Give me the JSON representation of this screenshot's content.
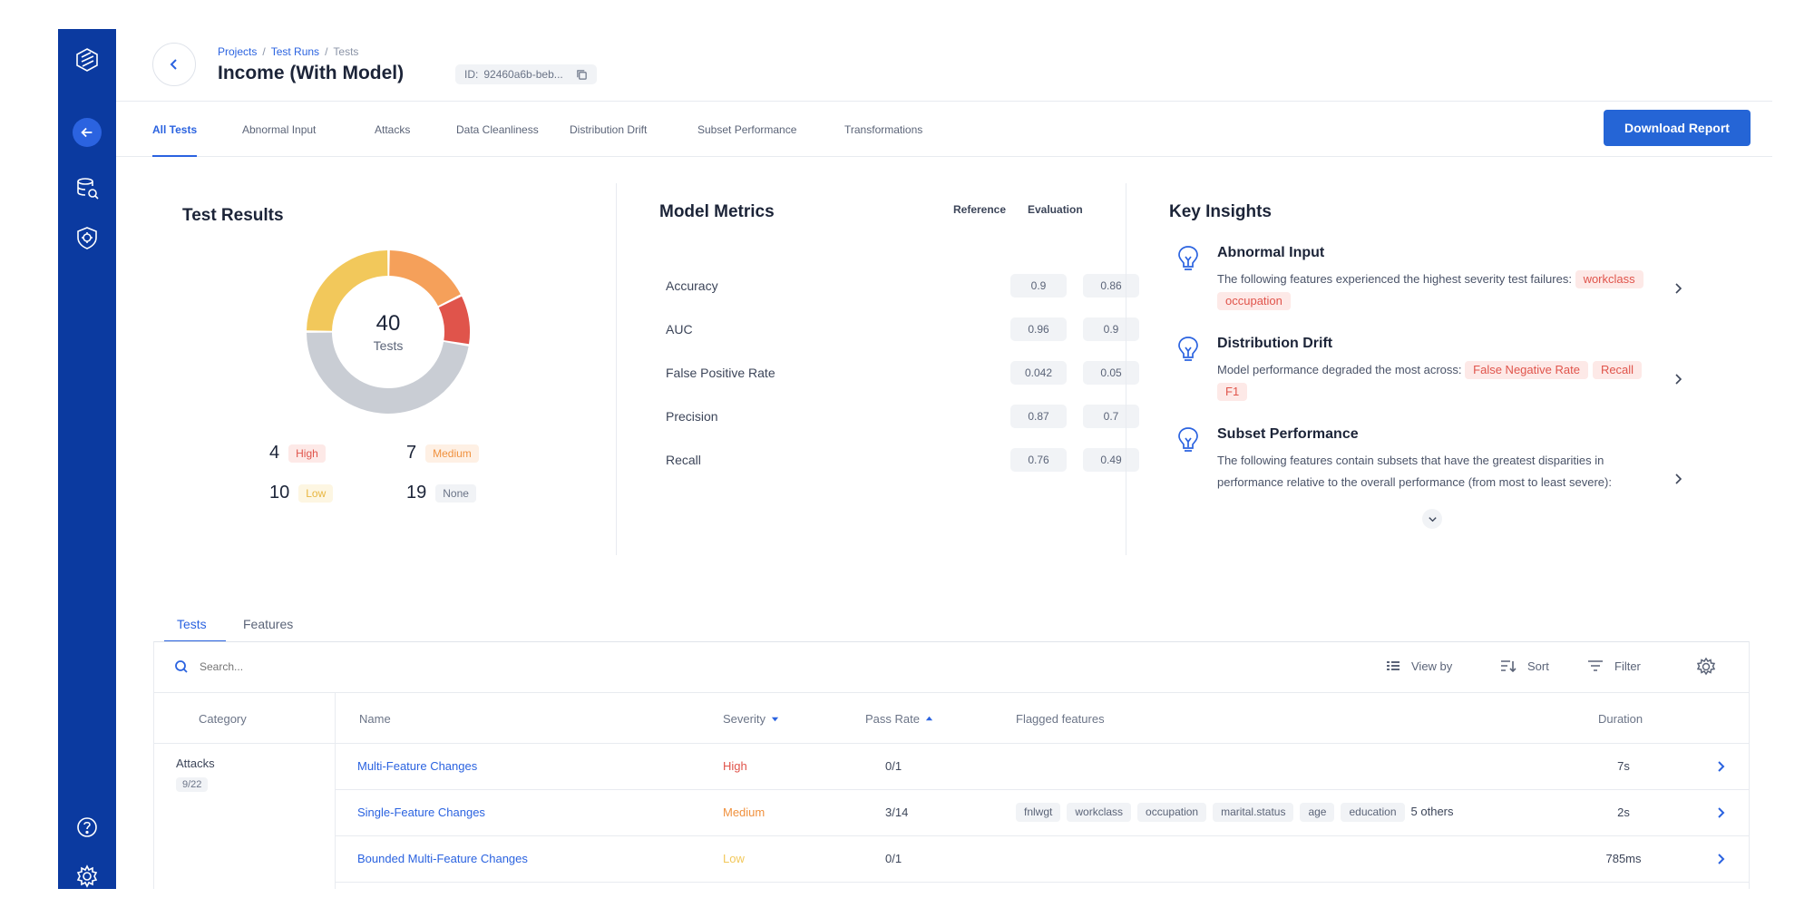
{
  "breadcrumb": {
    "projects": "Projects",
    "test_runs": "Test Runs",
    "tests": "Tests"
  },
  "title": "Income (With Model)",
  "id_label": "ID:",
  "id_value": "92460a6b-beb...",
  "tabs": [
    "All Tests",
    "Abnormal Input",
    "Attacks",
    "Data Cleanliness",
    "Distribution Drift",
    "Subset Performance",
    "Transformations"
  ],
  "download_label": "Download Report",
  "test_results": {
    "title": "Test Results",
    "total": "40",
    "total_label": "Tests",
    "severities": [
      {
        "count": "4",
        "label": "High",
        "color": "#e0544b"
      },
      {
        "count": "7",
        "label": "Medium",
        "color": "#f5a05a"
      },
      {
        "count": "10",
        "label": "Low",
        "color": "#f2c85b"
      },
      {
        "count": "19",
        "label": "None",
        "color": "#c9cdd4"
      }
    ]
  },
  "model_metrics": {
    "title": "Model Metrics",
    "col_reference": "Reference",
    "col_evaluation": "Evaluation",
    "rows": [
      {
        "name": "Accuracy",
        "reference": "0.9",
        "evaluation": "0.86"
      },
      {
        "name": "AUC",
        "reference": "0.96",
        "evaluation": "0.9"
      },
      {
        "name": "False Positive Rate",
        "reference": "0.042",
        "evaluation": "0.05"
      },
      {
        "name": "Precision",
        "reference": "0.87",
        "evaluation": "0.7"
      },
      {
        "name": "Recall",
        "reference": "0.76",
        "evaluation": "0.49"
      }
    ]
  },
  "key_insights": {
    "title": "Key Insights",
    "items": [
      {
        "title": "Abnormal Input",
        "text": "The following features experienced the highest severity test failures:",
        "tags": [
          "workclass",
          "occupation"
        ]
      },
      {
        "title": "Distribution Drift",
        "text": "Model performance degraded the most across:",
        "tags": [
          "False Negative Rate",
          "Recall",
          "F1"
        ]
      },
      {
        "title": "Subset Performance",
        "text": "The following features contain subsets that have the greatest disparities in performance relative to the overall performance (from most to least severe):",
        "tags": []
      }
    ]
  },
  "bottom_tabs": [
    "Tests",
    "Features"
  ],
  "search_placeholder": "Search...",
  "toolbar": {
    "view_by": "View by",
    "sort": "Sort",
    "filter": "Filter"
  },
  "table": {
    "headers": {
      "category": "Category",
      "name": "Name",
      "severity": "Severity",
      "pass_rate": "Pass Rate",
      "flagged": "Flagged features",
      "duration": "Duration"
    },
    "category": {
      "name": "Attacks",
      "count": "9/22"
    },
    "rows": [
      {
        "name": "Multi-Feature Changes",
        "severity": "High",
        "severity_color": "#e0544b",
        "pass_rate": "0/1",
        "features": [],
        "others": "",
        "duration": "7s"
      },
      {
        "name": "Single-Feature Changes",
        "severity": "Medium",
        "severity_color": "#f0913e",
        "pass_rate": "3/14",
        "features": [
          "fnlwgt",
          "workclass",
          "occupation",
          "marital.status",
          "age",
          "education"
        ],
        "others": "5 others",
        "duration": "2s"
      },
      {
        "name": "Bounded Multi-Feature Changes",
        "severity": "Low",
        "severity_color": "#f2c85b",
        "pass_rate": "0/1",
        "features": [],
        "others": "",
        "duration": "785ms"
      }
    ]
  }
}
